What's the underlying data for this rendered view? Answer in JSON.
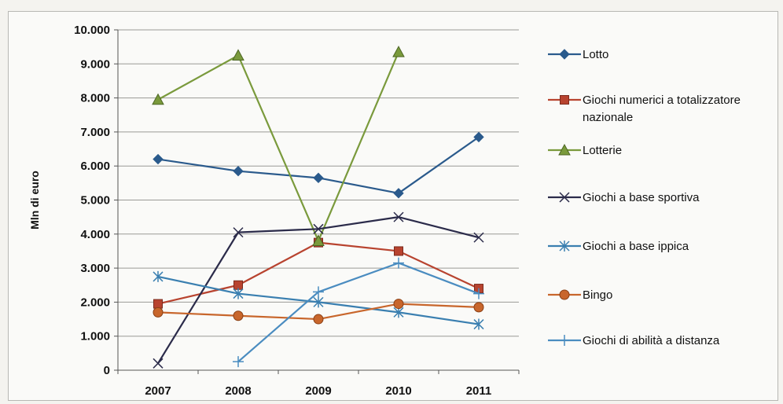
{
  "chart_data": {
    "type": "line",
    "title": "",
    "xlabel": "",
    "ylabel": "Mln di euro",
    "categories": [
      "2007",
      "2008",
      "2009",
      "2010",
      "2011"
    ],
    "ylim": [
      0,
      10000
    ],
    "yticks": [
      "0",
      "1.000",
      "2.000",
      "3.000",
      "4.000",
      "5.000",
      "6.000",
      "7.000",
      "8.000",
      "9.000",
      "10.000"
    ],
    "grid": true,
    "legend_position": "right",
    "series": [
      {
        "name": "Lotto",
        "color": "#2a5a8c",
        "marker": "diamond",
        "values": [
          6200,
          5850,
          5650,
          5200,
          6850
        ]
      },
      {
        "name": "Giochi numerici a totalizzatore nazionale",
        "color": "#b8432f",
        "marker": "square",
        "values": [
          1950,
          2500,
          3750,
          3500,
          2400
        ]
      },
      {
        "name": "Lotterie",
        "color": "#7a9a3c",
        "marker": "triangle",
        "values": [
          7950,
          9250,
          3800,
          9350,
          null
        ]
      },
      {
        "name": "Giochi a base sportiva",
        "color": "#2b2b4a",
        "marker": "x",
        "values": [
          200,
          4050,
          4150,
          4500,
          3900
        ]
      },
      {
        "name": "Giochi a base ippica",
        "color": "#3a7fb0",
        "marker": "star",
        "values": [
          2750,
          2250,
          2000,
          1700,
          1350
        ]
      },
      {
        "name": "Bingo",
        "color": "#c8662c",
        "marker": "circle",
        "values": [
          1700,
          1600,
          1500,
          1950,
          1850
        ]
      },
      {
        "name": "Giochi di abilità a distanza",
        "color": "#4a8cc0",
        "marker": "plus",
        "values": [
          null,
          250,
          2300,
          3150,
          2250
        ]
      }
    ]
  }
}
